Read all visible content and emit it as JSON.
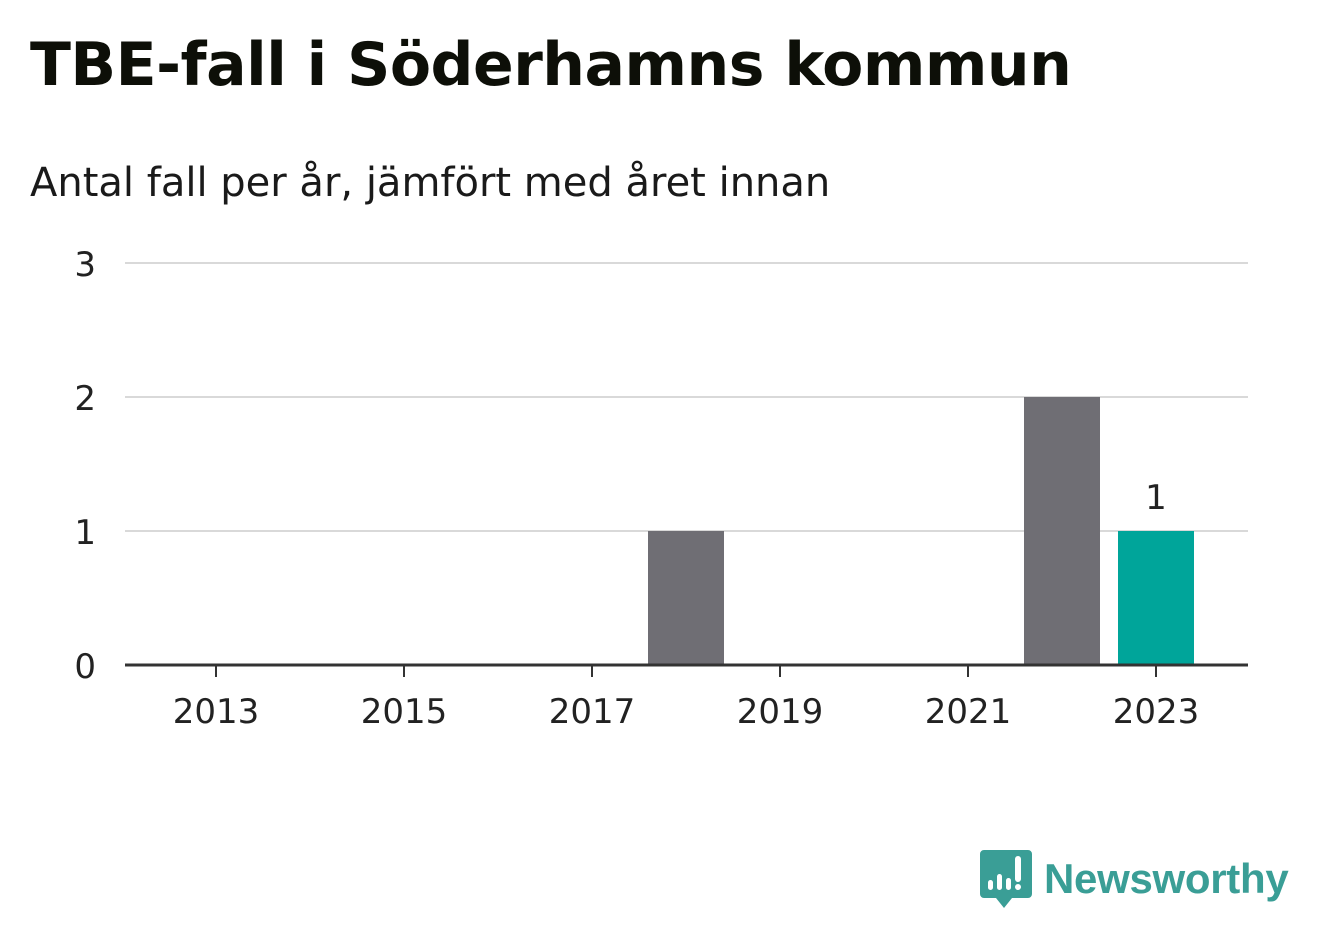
{
  "title": "TBE-fall i Söderhamns kommun",
  "subtitle": "Antal fall per år, jämfört med året innan",
  "brand": {
    "name": "Newsworthy",
    "color": "#3a9e96",
    "icon": "chart-bubble-icon"
  },
  "chart_data": {
    "type": "bar",
    "categories": [
      "2013",
      "2014",
      "2015",
      "2016",
      "2017",
      "2018",
      "2019",
      "2020",
      "2021",
      "2022",
      "2023"
    ],
    "values": [
      0,
      0,
      0,
      0,
      0,
      1,
      0,
      0,
      0,
      2,
      1
    ],
    "x_tick_labels": [
      "2013",
      "2015",
      "2017",
      "2019",
      "2021",
      "2023"
    ],
    "y_ticks": [
      0,
      1,
      2,
      3
    ],
    "ylim": [
      0,
      3
    ],
    "grid": true,
    "highlight_category": "2023",
    "data_labels": [
      {
        "category": "2023",
        "label": "1"
      }
    ],
    "colors": {
      "bar": "#6f6e74",
      "highlight": "#00a59a",
      "grid": "#d9d9d9",
      "axis": "#333333"
    },
    "xlabel": "",
    "ylabel": ""
  }
}
